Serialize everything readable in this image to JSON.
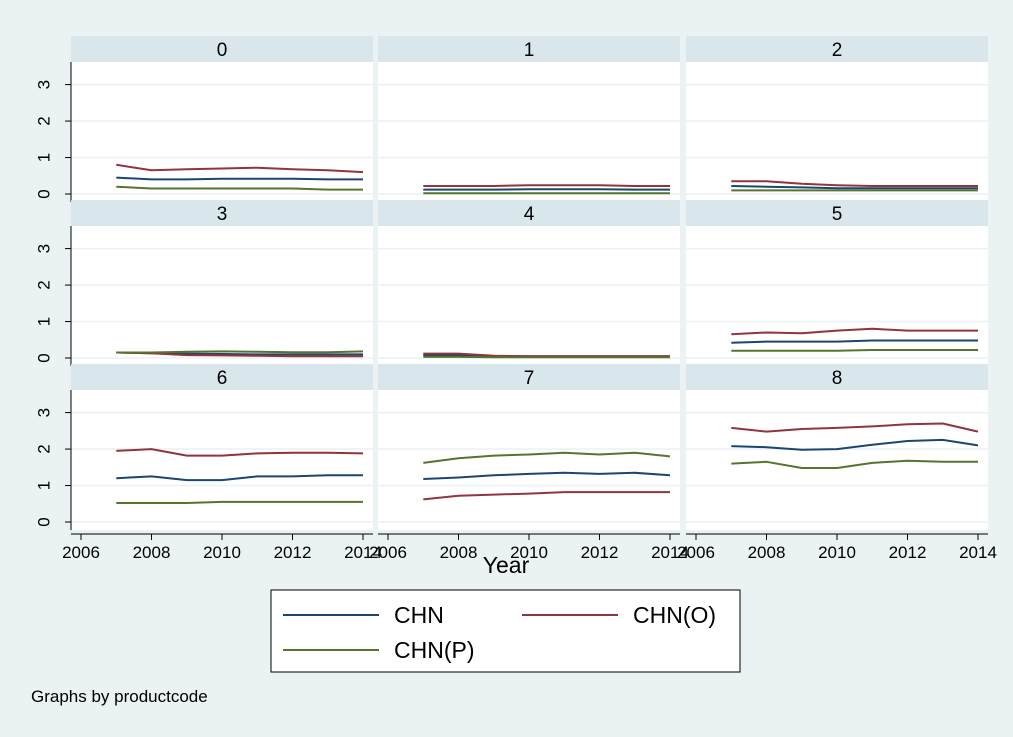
{
  "chart_data": {
    "type": "line",
    "layout": "facet-grid-3x3",
    "facet_variable": "productcode",
    "xlabel": "Year",
    "ylabel": "",
    "xlim": [
      2006,
      2014
    ],
    "ylim": [
      0,
      3.4
    ],
    "xticks": [
      2006,
      2008,
      2010,
      2012,
      2014
    ],
    "yticks": [
      0,
      1,
      2,
      3
    ],
    "grid": true,
    "legend_placement": "bottom",
    "note": "Graphs by productcode",
    "x": [
      2007,
      2008,
      2009,
      2010,
      2011,
      2012,
      2013,
      2014
    ],
    "series_info": [
      {
        "name": "CHN",
        "color": "#1a476f"
      },
      {
        "name": "CHN(O)",
        "color": "#90353b"
      },
      {
        "name": "CHN(P)",
        "color": "#55752f"
      }
    ],
    "panels": [
      {
        "label": "0",
        "series": [
          {
            "name": "CHN",
            "values": [
              0.45,
              0.4,
              0.4,
              0.42,
              0.42,
              0.42,
              0.4,
              0.4
            ]
          },
          {
            "name": "CHN(O)",
            "values": [
              0.8,
              0.65,
              0.68,
              0.7,
              0.72,
              0.68,
              0.65,
              0.6
            ]
          },
          {
            "name": "CHN(P)",
            "values": [
              0.2,
              0.15,
              0.15,
              0.15,
              0.15,
              0.15,
              0.12,
              0.12
            ]
          }
        ]
      },
      {
        "label": "1",
        "series": [
          {
            "name": "CHN",
            "values": [
              0.12,
              0.12,
              0.12,
              0.13,
              0.13,
              0.13,
              0.12,
              0.12
            ]
          },
          {
            "name": "CHN(O)",
            "values": [
              0.22,
              0.22,
              0.22,
              0.24,
              0.24,
              0.24,
              0.22,
              0.22
            ]
          },
          {
            "name": "CHN(P)",
            "values": [
              0.02,
              0.02,
              0.02,
              0.02,
              0.02,
              0.02,
              0.02,
              0.02
            ]
          }
        ]
      },
      {
        "label": "2",
        "series": [
          {
            "name": "CHN",
            "values": [
              0.22,
              0.2,
              0.18,
              0.16,
              0.16,
              0.16,
              0.16,
              0.16
            ]
          },
          {
            "name": "CHN(O)",
            "values": [
              0.35,
              0.35,
              0.28,
              0.24,
              0.22,
              0.22,
              0.22,
              0.22
            ]
          },
          {
            "name": "CHN(P)",
            "values": [
              0.1,
              0.1,
              0.1,
              0.1,
              0.1,
              0.1,
              0.1,
              0.1
            ]
          }
        ]
      },
      {
        "label": "3",
        "series": [
          {
            "name": "CHN",
            "values": [
              0.15,
              0.13,
              0.12,
              0.11,
              0.1,
              0.1,
              0.1,
              0.1
            ]
          },
          {
            "name": "CHN(O)",
            "values": [
              0.15,
              0.13,
              0.08,
              0.07,
              0.06,
              0.05,
              0.05,
              0.05
            ]
          },
          {
            "name": "CHN(P)",
            "values": [
              0.15,
              0.15,
              0.17,
              0.18,
              0.17,
              0.16,
              0.16,
              0.18
            ]
          }
        ]
      },
      {
        "label": "4",
        "series": [
          {
            "name": "CHN",
            "values": [
              0.08,
              0.07,
              0.05,
              0.05,
              0.05,
              0.05,
              0.05,
              0.05
            ]
          },
          {
            "name": "CHN(O)",
            "values": [
              0.12,
              0.12,
              0.06,
              0.05,
              0.05,
              0.05,
              0.05,
              0.05
            ]
          },
          {
            "name": "CHN(P)",
            "values": [
              0.03,
              0.03,
              0.02,
              0.02,
              0.02,
              0.02,
              0.02,
              0.02
            ]
          }
        ]
      },
      {
        "label": "5",
        "series": [
          {
            "name": "CHN",
            "values": [
              0.42,
              0.45,
              0.45,
              0.45,
              0.48,
              0.48,
              0.48,
              0.48
            ]
          },
          {
            "name": "CHN(O)",
            "values": [
              0.65,
              0.7,
              0.68,
              0.75,
              0.8,
              0.75,
              0.75,
              0.75
            ]
          },
          {
            "name": "CHN(P)",
            "values": [
              0.2,
              0.2,
              0.2,
              0.2,
              0.22,
              0.22,
              0.22,
              0.22
            ]
          }
        ]
      },
      {
        "label": "6",
        "series": [
          {
            "name": "CHN",
            "values": [
              1.2,
              1.25,
              1.15,
              1.15,
              1.25,
              1.25,
              1.28,
              1.28
            ]
          },
          {
            "name": "CHN(O)",
            "values": [
              1.95,
              2.0,
              1.82,
              1.82,
              1.88,
              1.9,
              1.9,
              1.88
            ]
          },
          {
            "name": "CHN(P)",
            "values": [
              0.52,
              0.52,
              0.52,
              0.55,
              0.55,
              0.55,
              0.55,
              0.55
            ]
          }
        ]
      },
      {
        "label": "7",
        "series": [
          {
            "name": "CHN",
            "values": [
              1.18,
              1.22,
              1.28,
              1.32,
              1.35,
              1.32,
              1.35,
              1.28
            ]
          },
          {
            "name": "CHN(O)",
            "values": [
              0.62,
              0.72,
              0.75,
              0.78,
              0.82,
              0.82,
              0.82,
              0.82
            ]
          },
          {
            "name": "CHN(P)",
            "values": [
              1.62,
              1.75,
              1.82,
              1.85,
              1.9,
              1.85,
              1.9,
              1.8
            ]
          }
        ]
      },
      {
        "label": "8",
        "series": [
          {
            "name": "CHN",
            "values": [
              2.08,
              2.05,
              1.98,
              2.0,
              2.12,
              2.22,
              2.25,
              2.1
            ]
          },
          {
            "name": "CHN(O)",
            "values": [
              2.58,
              2.48,
              2.55,
              2.58,
              2.62,
              2.68,
              2.7,
              2.48
            ]
          },
          {
            "name": "CHN(P)",
            "values": [
              1.6,
              1.65,
              1.48,
              1.48,
              1.62,
              1.68,
              1.65,
              1.65
            ]
          }
        ]
      }
    ]
  }
}
